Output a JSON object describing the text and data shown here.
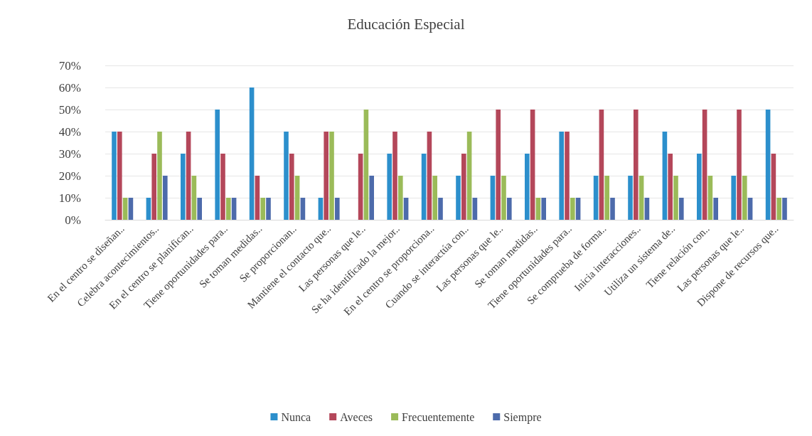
{
  "chart_data": {
    "type": "bar",
    "title": "Educación Especial",
    "categories": [
      "En el centro se diseñan..",
      "Celebra acontecimientos..",
      "En el centro se planifican..",
      "Tiene oportunidades para..",
      "Se toman medidas..",
      "Se proporcionan..",
      "Mantiene el contacto que..",
      "Las personas que le..",
      "Se ha identificado la mejor..",
      "En el centro se proporciona..",
      "Cuando se interactúa con..",
      "Las personas que le..",
      "Se toman medidas..",
      "Tiene oportunidades para..",
      "Se comprueba de forma..",
      "Inicia interacciones..",
      "Utiliza un sistema de..",
      "Tiene relación con..",
      "Las personas que le..",
      "Dispone de recursos que.."
    ],
    "series": [
      {
        "name": "Nunca",
        "color": "#2c8fcc",
        "values": [
          40,
          10,
          30,
          50,
          60,
          40,
          10,
          0,
          30,
          30,
          20,
          20,
          30,
          40,
          20,
          20,
          40,
          30,
          20,
          50
        ]
      },
      {
        "name": "Aveces",
        "color": "#b4475a",
        "values": [
          40,
          30,
          40,
          30,
          20,
          30,
          40,
          30,
          40,
          40,
          30,
          50,
          50,
          40,
          50,
          50,
          30,
          50,
          50,
          30
        ]
      },
      {
        "name": "Frecuentemente",
        "color": "#9bbb59",
        "values": [
          10,
          40,
          20,
          10,
          10,
          20,
          40,
          50,
          20,
          20,
          40,
          20,
          10,
          10,
          20,
          20,
          20,
          20,
          20,
          10
        ]
      },
      {
        "name": "Siempre",
        "color": "#4d6bab",
        "values": [
          10,
          20,
          10,
          10,
          10,
          10,
          10,
          20,
          10,
          10,
          10,
          10,
          10,
          10,
          10,
          10,
          10,
          10,
          10,
          10
        ]
      }
    ],
    "ylim": [
      0,
      70
    ],
    "yticks": [
      {
        "value": 0,
        "label": "0%"
      },
      {
        "value": 10,
        "label": "10%"
      },
      {
        "value": 20,
        "label": "20%"
      },
      {
        "value": 30,
        "label": "30%"
      },
      {
        "value": 40,
        "label": "40%"
      },
      {
        "value": 50,
        "label": "50%"
      },
      {
        "value": 60,
        "label": "60%"
      },
      {
        "value": 70,
        "label": "70%"
      }
    ],
    "grid": "y",
    "legend": "bottom"
  }
}
